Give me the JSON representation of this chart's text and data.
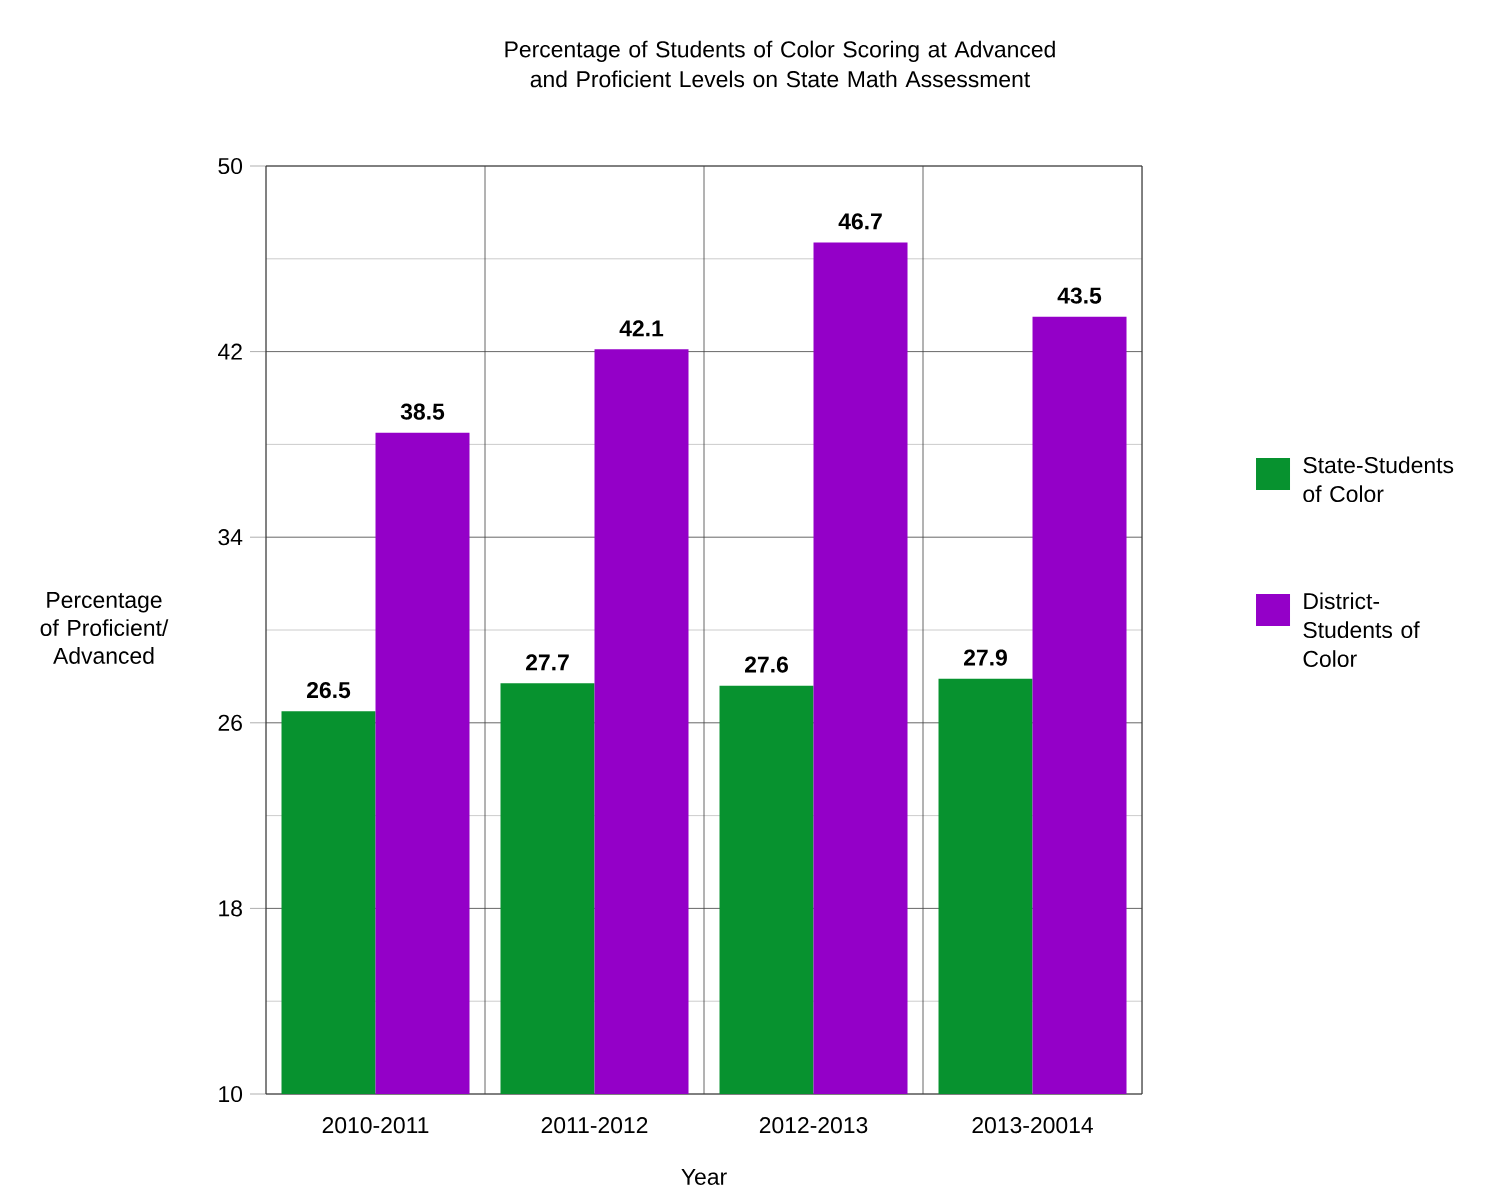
{
  "chart_data": {
    "type": "bar",
    "title": "Percentage of Students of Color Scoring at Advanced and Proficient Levels on State Math Assessment",
    "xlabel": "Year",
    "ylabel": "Percentage of Proficient/ Advanced",
    "categories": [
      "2010-2011",
      "2011-2012",
      "2012-2013",
      "2013-20014"
    ],
    "series": [
      {
        "name": "State-Students of Color",
        "color": "#07922f",
        "values": [
          26.5,
          27.7,
          27.6,
          27.9
        ]
      },
      {
        "name": "District-Students of Color",
        "color": "#9400c8",
        "values": [
          38.5,
          42.1,
          46.7,
          43.5
        ]
      }
    ],
    "ylim": [
      10,
      50
    ],
    "yticks": [
      10,
      18,
      26,
      34,
      42,
      50
    ],
    "grid": true,
    "legend": "right",
    "data_labels": true
  }
}
